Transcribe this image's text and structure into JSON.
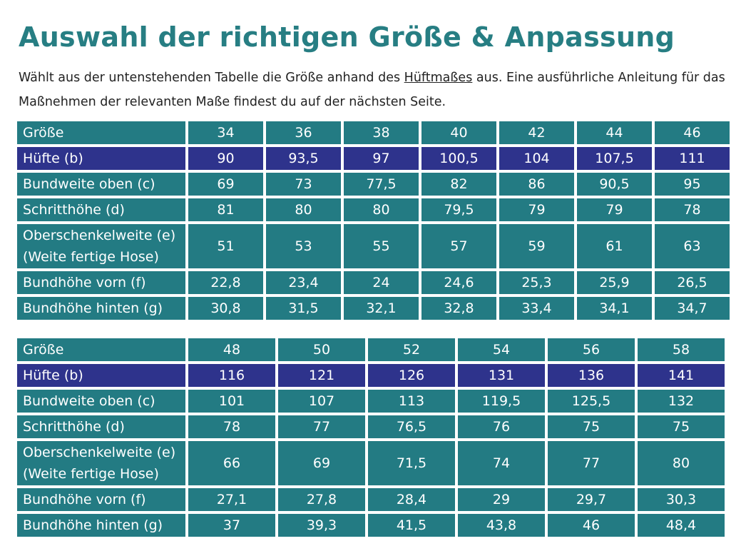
{
  "title": "Auswahl der richtigen Größe & Anpassung",
  "intro": {
    "part1": "Wählt aus der untenstehenden Tabelle die Größe anhand des ",
    "underlined": "Hüftmaßes",
    "part2": " aus. Eine ausführliche Anleitung für das Maßnehmen der relevanten Maße findest du auf der nächsten Seite."
  },
  "colors": {
    "title": "#277e83",
    "cell": "#237b83",
    "hip_row": "#2e338c"
  },
  "row_labels": {
    "size": "Größe",
    "hip": "Hüfte (b)",
    "waist_top": "Bundweite oben (c)",
    "inseam": "Schritthöhe (d)",
    "thigh_line1": "Oberschenkelweite (e)",
    "thigh_line2": "(Weite fertige Hose)",
    "rise_front": "Bundhöhe vorn (f)",
    "rise_back": "Bundhöhe hinten (g)"
  },
  "table1": {
    "size": [
      "34",
      "36",
      "38",
      "40",
      "42",
      "44",
      "46"
    ],
    "hip": [
      "90",
      "93,5",
      "97",
      "100,5",
      "104",
      "107,5",
      "111"
    ],
    "waist_top": [
      "69",
      "73",
      "77,5",
      "82",
      "86",
      "90,5",
      "95"
    ],
    "inseam": [
      "81",
      "80",
      "80",
      "79,5",
      "79",
      "79",
      "78"
    ],
    "thigh": [
      "51",
      "53",
      "55",
      "57",
      "59",
      "61",
      "63"
    ],
    "rise_front": [
      "22,8",
      "23,4",
      "24",
      "24,6",
      "25,3",
      "25,9",
      "26,5"
    ],
    "rise_back": [
      "30,8",
      "31,5",
      "32,1",
      "32,8",
      "33,4",
      "34,1",
      "34,7"
    ]
  },
  "table2": {
    "size": [
      "48",
      "50",
      "52",
      "54",
      "56",
      "58"
    ],
    "hip": [
      "116",
      "121",
      "126",
      "131",
      "136",
      "141"
    ],
    "waist_top": [
      "101",
      "107",
      "113",
      "119,5",
      "125,5",
      "132"
    ],
    "inseam": [
      "78",
      "77",
      "76,5",
      "76",
      "75",
      "75"
    ],
    "thigh": [
      "66",
      "69",
      "71,5",
      "74",
      "77",
      "80"
    ],
    "rise_front": [
      "27,1",
      "27,8",
      "28,4",
      "29",
      "29,7",
      "30,3"
    ],
    "rise_back": [
      "37",
      "39,3",
      "41,5",
      "43,8",
      "46",
      "48,4"
    ]
  }
}
